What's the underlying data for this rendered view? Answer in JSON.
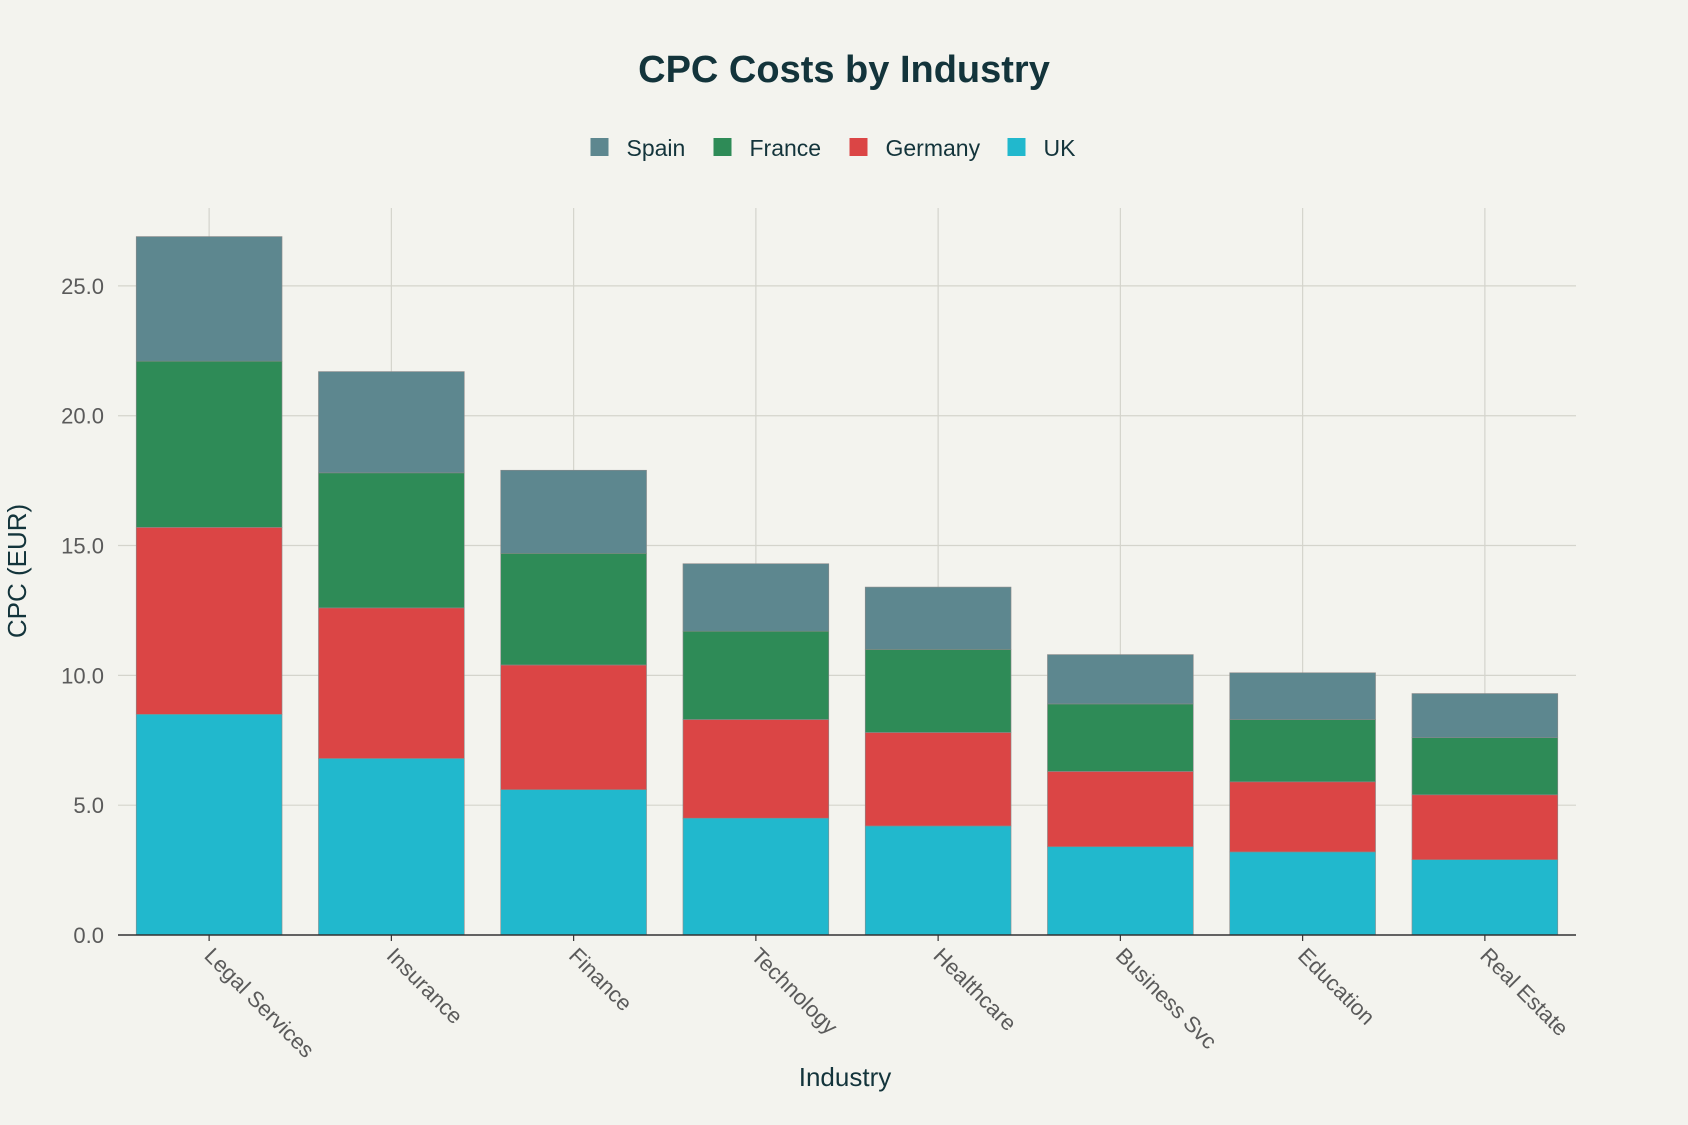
{
  "chart_data": {
    "type": "bar",
    "stacked": true,
    "title": "CPC Costs by Industry",
    "xlabel": "Industry",
    "ylabel": "CPC (EUR)",
    "ylim": [
      0,
      28
    ],
    "yticks": [
      "0.0",
      "5.0",
      "10.0",
      "15.0",
      "20.0",
      "25.0"
    ],
    "grid": true,
    "legend_position": "top-center",
    "categories": [
      "Legal Services",
      "Insurance",
      "Finance",
      "Technology",
      "Healthcare",
      "Business Svc",
      "Education",
      "Real Estate"
    ],
    "series": [
      {
        "name": "UK",
        "color": "#21b8cd",
        "values": [
          8.5,
          6.8,
          5.6,
          4.5,
          4.2,
          3.4,
          3.2,
          2.9
        ]
      },
      {
        "name": "Germany",
        "color": "#db4545",
        "values": [
          7.2,
          5.8,
          4.8,
          3.8,
          3.6,
          2.9,
          2.7,
          2.5
        ]
      },
      {
        "name": "France",
        "color": "#2e8b57",
        "values": [
          6.4,
          5.2,
          4.3,
          3.4,
          3.2,
          2.6,
          2.4,
          2.2
        ]
      },
      {
        "name": "Spain",
        "color": "#5d878f",
        "values": [
          4.8,
          3.9,
          3.2,
          2.6,
          2.4,
          1.9,
          1.8,
          1.7
        ]
      }
    ],
    "legend_order": [
      "Spain",
      "France",
      "Germany",
      "UK"
    ]
  },
  "colors": {
    "background": "#f3f3ee",
    "title_text": "#13343b",
    "axis_text": "#5a5a5a",
    "grid": "#d4d4cc",
    "axis_line": "#333333"
  }
}
